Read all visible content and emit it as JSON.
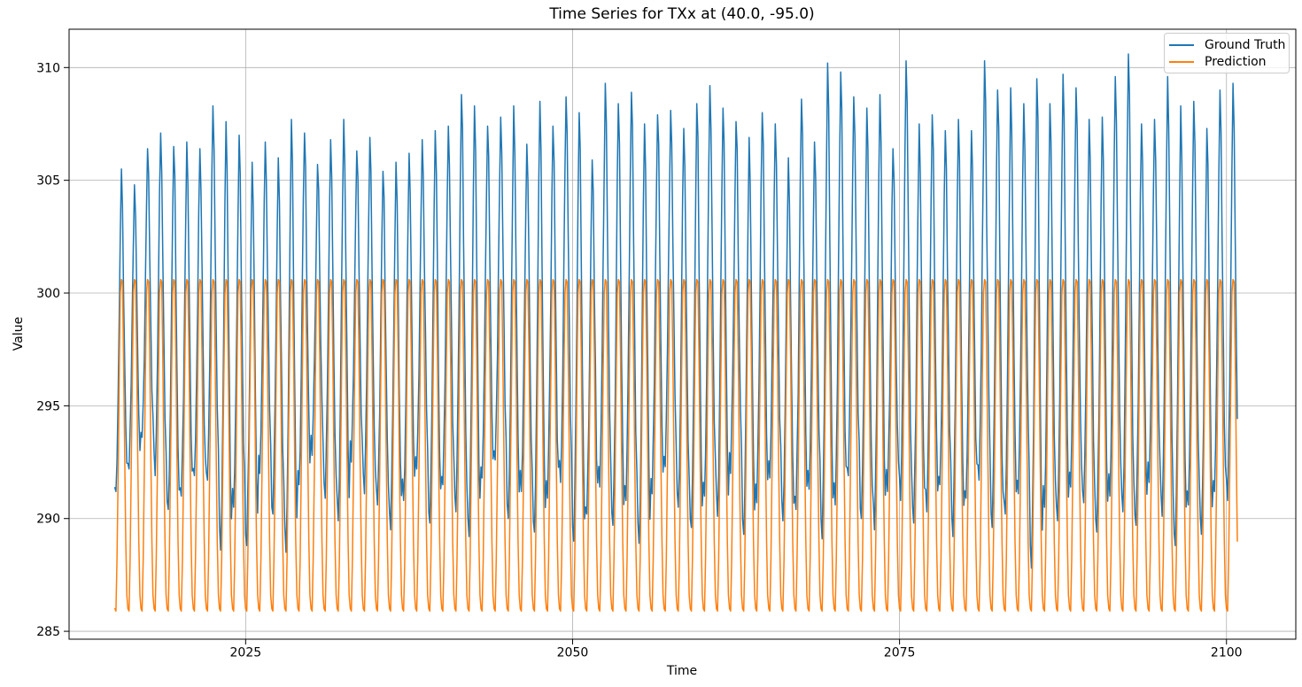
{
  "chart_data": {
    "type": "line",
    "title": "Time Series for TXx at (40.0, -95.0)",
    "xlabel": "Time",
    "ylabel": "Value",
    "xlim": [
      2011.5,
      2105.3
    ],
    "ylim": [
      284.65,
      311.7
    ],
    "xticks": [
      2025,
      2050,
      2075,
      2100
    ],
    "yticks": [
      285,
      290,
      295,
      300,
      305,
      310
    ],
    "grid": true,
    "grid_color": "#b0b0b0",
    "background_color": "#ffffff",
    "axis_color": "#000000",
    "legend": {
      "position": "upper right",
      "border_color": "#cccccc"
    },
    "sampling": "monthly",
    "start_year": 2015,
    "end_year": 2100,
    "end_month_index": 10,
    "series": [
      {
        "name": "Ground Truth",
        "color": "#1f77b4",
        "line_width": 1.5,
        "annual_max": [
          305.5,
          304.8,
          306.4,
          307.1,
          306.5,
          306.7,
          306.4,
          308.3,
          307.6,
          307.0,
          305.8,
          306.7,
          306.0,
          307.7,
          307.1,
          305.7,
          306.8,
          307.7,
          306.3,
          306.9,
          305.4,
          305.8,
          306.2,
          306.8,
          307.2,
          307.4,
          308.8,
          308.3,
          307.4,
          307.8,
          308.3,
          306.6,
          308.5,
          307.4,
          308.7,
          308.0,
          305.9,
          309.3,
          308.4,
          308.9,
          307.5,
          307.9,
          308.1,
          307.3,
          308.4,
          309.2,
          308.2,
          307.6,
          306.9,
          308.0,
          307.5,
          306.0,
          308.6,
          306.7,
          310.2,
          309.8,
          308.7,
          308.2,
          308.8,
          306.4,
          310.3,
          307.5,
          307.9,
          307.2,
          307.7,
          307.2,
          310.3,
          309.0,
          309.1,
          308.4,
          309.5,
          308.4,
          309.7,
          309.1,
          307.7,
          307.8,
          309.6,
          310.6,
          307.5,
          307.7,
          309.6,
          308.3,
          308.5,
          307.3,
          309.0,
          309.3
        ],
        "annual_min": [
          291.2,
          292.2,
          293.6,
          291.9,
          290.4,
          291.0,
          291.9,
          291.7,
          288.6,
          290.5,
          288.8,
          292.0,
          290.2,
          288.5,
          291.5,
          292.8,
          290.9,
          289.9,
          292.5,
          291.1,
          290.6,
          289.5,
          290.8,
          292.2,
          289.8,
          291.5,
          290.3,
          289.2,
          291.8,
          292.6,
          290.0,
          291.2,
          289.4,
          290.9,
          291.6,
          289.0,
          290.2,
          291.4,
          289.7,
          290.8,
          288.9,
          291.1,
          292.3,
          290.5,
          289.6,
          291.0,
          290.1,
          292.0,
          289.3,
          290.7,
          291.8,
          289.9,
          290.4,
          291.3,
          289.1,
          290.6,
          291.9,
          290.0,
          289.5,
          291.2,
          290.8,
          289.8,
          290.3,
          291.5,
          289.2,
          290.9,
          291.7,
          289.6,
          290.2,
          291.1,
          287.8,
          290.5,
          289.9,
          291.4,
          290.7,
          289.4,
          291.0,
          290.3,
          289.7,
          291.6,
          290.1,
          288.8,
          290.6,
          289.3,
          291.2,
          290.8
        ],
        "monthly_weights": [
          0.04,
          0.0,
          0.12,
          0.3,
          0.55,
          0.8,
          1.0,
          0.9,
          0.63,
          0.4,
          0.18,
          0.07
        ],
        "jitter": {
          "exclude_months": [
            1,
            6
          ],
          "amplitude": 0.4
        }
      },
      {
        "name": "Prediction",
        "color": "#ff7f0e",
        "line_width": 1.5,
        "monthly_values": [
          286.0,
          285.9,
          288.2,
          292.0,
          296.2,
          300.0,
          300.6,
          300.5,
          297.2,
          292.8,
          289.0,
          286.6
        ],
        "note": "identical seasonal cycle every year, clipped near 300.6 max and 285.9 min"
      }
    ]
  }
}
